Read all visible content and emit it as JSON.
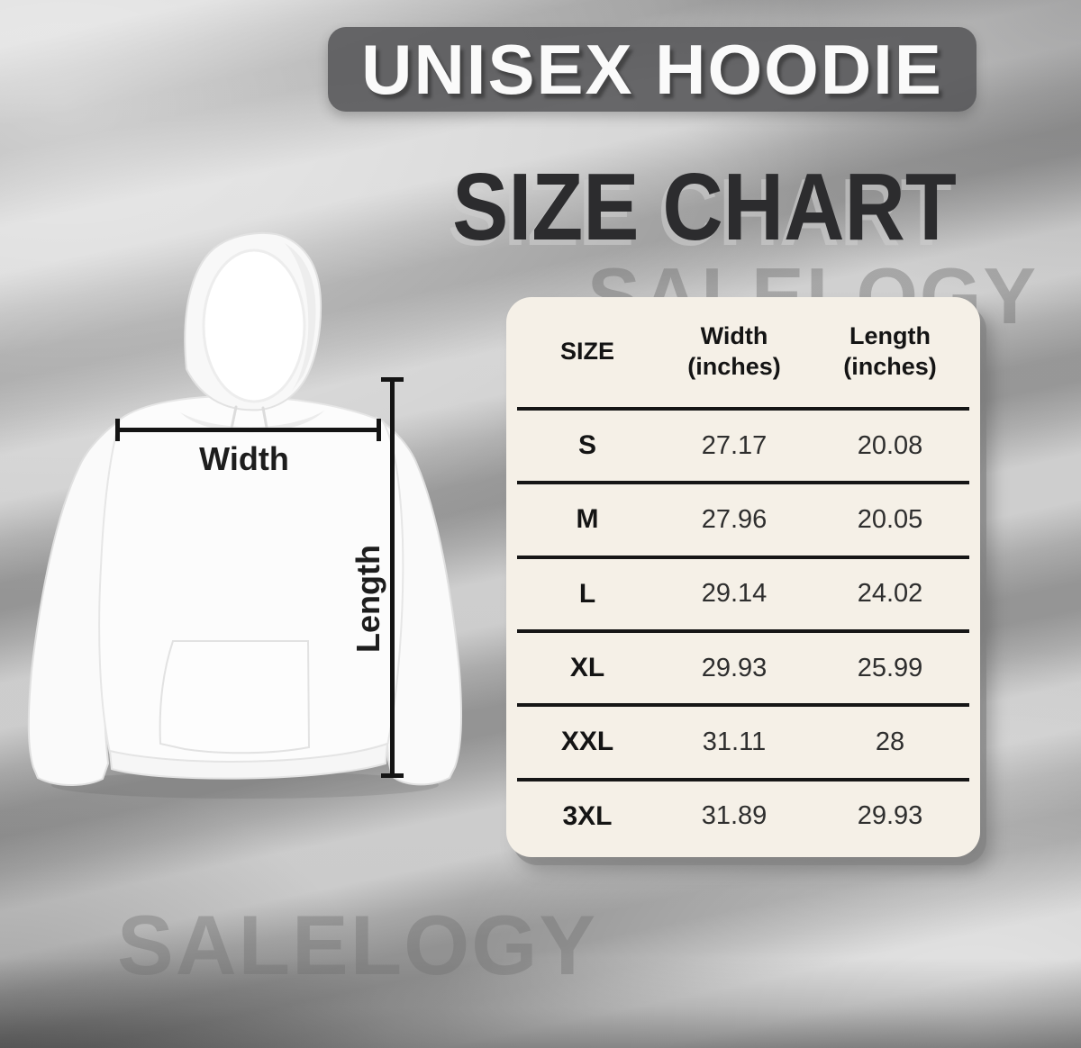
{
  "header": {
    "banner_title": "UNISEX HOODIE",
    "subtitle": "SIZE CHART"
  },
  "watermark": {
    "text": "SALELOGY"
  },
  "diagram": {
    "garment": "white pullover hoodie",
    "width_label": "Width",
    "length_label": "Length"
  },
  "table": {
    "headers": [
      {
        "line1": "SIZE",
        "line2": ""
      },
      {
        "line1": "Width",
        "line2": "(inches)"
      },
      {
        "line1": "Length",
        "line2": "(inches)"
      }
    ]
  },
  "chart_data": {
    "type": "table",
    "title": "UNISEX HOODIE SIZE CHART",
    "columns": [
      "SIZE",
      "Width (inches)",
      "Length (inches)"
    ],
    "rows": [
      [
        "S",
        27.17,
        20.08
      ],
      [
        "M",
        27.96,
        20.05
      ],
      [
        "L",
        29.14,
        24.02
      ],
      [
        "XL",
        29.93,
        25.99
      ],
      [
        "XXL",
        31.11,
        28
      ],
      [
        "3XL",
        31.89,
        29.93
      ]
    ]
  },
  "colors": {
    "card_bg": "#f5f0e7",
    "banner_bg": "#58585b",
    "table_line": "#161616",
    "headline_text": "#2c2c2e",
    "banner_text": "#fafafa",
    "measure_line": "#141414",
    "watermark": "#6e6e6e",
    "wall_light": "#cfcfcf",
    "wall_dark": "#8d8d8d"
  }
}
